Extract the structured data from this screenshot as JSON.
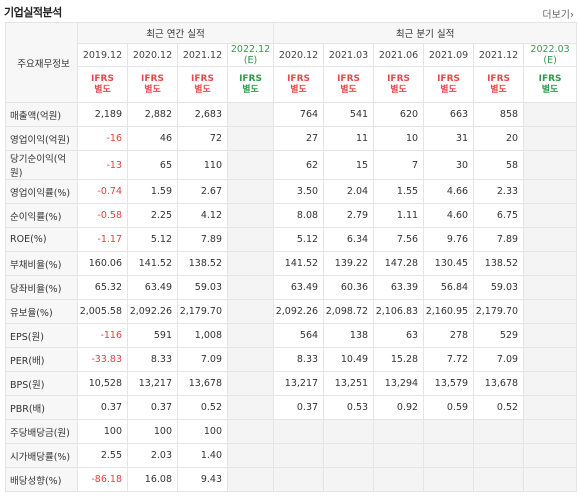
{
  "header": {
    "title": "기업실적분석",
    "more_label": "더보기",
    "more_arrow": "›"
  },
  "table": {
    "corner_label": "주요재무정보",
    "group_annual": "최근 연간 실적",
    "group_quarter": "최근 분기 실적",
    "periods": [
      "2019.12",
      "2020.12",
      "2021.12",
      "2022.12",
      "2020.12",
      "2021.03",
      "2021.06",
      "2021.09",
      "2021.12",
      "2022.03"
    ],
    "estimate_mark": "(E)",
    "ifrs_line1": "IFRS",
    "ifrs_line2": "별도",
    "rows": [
      {
        "label": "매출액(억원)",
        "values": [
          "2,189",
          "2,882",
          "2,683",
          "",
          "764",
          "541",
          "620",
          "663",
          "858",
          ""
        ]
      },
      {
        "label": "영업이익(억원)",
        "values": [
          "-16",
          "46",
          "72",
          "",
          "27",
          "11",
          "10",
          "31",
          "20",
          ""
        ]
      },
      {
        "label": "당기순이익(억원)",
        "values": [
          "-13",
          "65",
          "110",
          "",
          "62",
          "15",
          "7",
          "30",
          "58",
          ""
        ]
      },
      {
        "label": "영업이익률(%)",
        "values": [
          "-0.74",
          "1.59",
          "2.67",
          "",
          "3.50",
          "2.04",
          "1.55",
          "4.66",
          "2.33",
          ""
        ]
      },
      {
        "label": "순이익률(%)",
        "values": [
          "-0.58",
          "2.25",
          "4.12",
          "",
          "8.08",
          "2.79",
          "1.11",
          "4.60",
          "6.75",
          ""
        ]
      },
      {
        "label": "ROE(%)",
        "values": [
          "-1.17",
          "5.12",
          "7.89",
          "",
          "5.12",
          "6.34",
          "7.56",
          "9.76",
          "7.89",
          ""
        ]
      },
      {
        "label": "부채비율(%)",
        "values": [
          "160.06",
          "141.52",
          "138.52",
          "",
          "141.52",
          "139.22",
          "147.28",
          "130.45",
          "138.52",
          ""
        ]
      },
      {
        "label": "당좌비율(%)",
        "values": [
          "65.32",
          "63.49",
          "59.03",
          "",
          "63.49",
          "60.36",
          "63.39",
          "56.84",
          "59.03",
          ""
        ]
      },
      {
        "label": "유보율(%)",
        "values": [
          "2,005.58",
          "2,092.26",
          "2,179.70",
          "",
          "2,092.26",
          "2,098.72",
          "2,106.83",
          "2,160.95",
          "2,179.70",
          ""
        ]
      },
      {
        "label": "EPS(원)",
        "values": [
          "-116",
          "591",
          "1,008",
          "",
          "564",
          "138",
          "63",
          "278",
          "529",
          ""
        ]
      },
      {
        "label": "PER(배)",
        "values": [
          "-33.83",
          "8.33",
          "7.09",
          "",
          "8.33",
          "10.49",
          "15.28",
          "7.72",
          "7.09",
          ""
        ]
      },
      {
        "label": "BPS(원)",
        "values": [
          "10,528",
          "13,217",
          "13,678",
          "",
          "13,217",
          "13,251",
          "13,294",
          "13,579",
          "13,678",
          ""
        ]
      },
      {
        "label": "PBR(배)",
        "values": [
          "0.37",
          "0.37",
          "0.52",
          "",
          "0.37",
          "0.53",
          "0.92",
          "0.59",
          "0.52",
          ""
        ]
      },
      {
        "label": "주당배당금(원)",
        "values": [
          "100",
          "100",
          "100",
          "",
          "",
          "",
          "",
          "",
          "",
          ""
        ]
      },
      {
        "label": "시가배당률(%)",
        "values": [
          "2.55",
          "2.03",
          "1.40",
          "",
          "",
          "",
          "",
          "",
          "",
          ""
        ]
      },
      {
        "label": "배당성향(%)",
        "values": [
          "-86.18",
          "16.08",
          "9.43",
          "",
          "",
          "",
          "",
          "",
          "",
          ""
        ]
      }
    ]
  },
  "colors": {
    "negative": "#e43f3f",
    "ifrs": "#e8494b",
    "estimate": "#2e9a4e"
  }
}
